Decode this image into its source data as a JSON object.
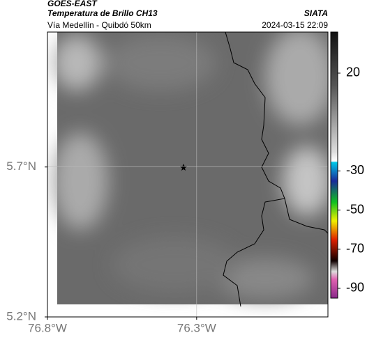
{
  "header": {
    "title": "GOES-EAST",
    "subtitle": "Temperatura de Brillo CH13",
    "source": "SIATA",
    "route": "Vía Medellín - Quibdó 50km",
    "timestamp": "2024-03-15 22:09"
  },
  "map": {
    "xlim": [
      -76.8,
      -75.86
    ],
    "ylim": [
      5.2,
      6.15
    ],
    "xticks": [
      {
        "value": -76.8,
        "label": "76.8°W"
      },
      {
        "value": -76.3,
        "label": "76.3°W"
      }
    ],
    "yticks": [
      {
        "value": 5.7,
        "label": "5.7°N"
      },
      {
        "value": 5.2,
        "label": "5.2°N"
      }
    ]
  },
  "colorbar": {
    "ylim": [
      -95,
      41
    ],
    "yticks": [
      20,
      -30,
      -50,
      -70,
      -90
    ]
  }
}
